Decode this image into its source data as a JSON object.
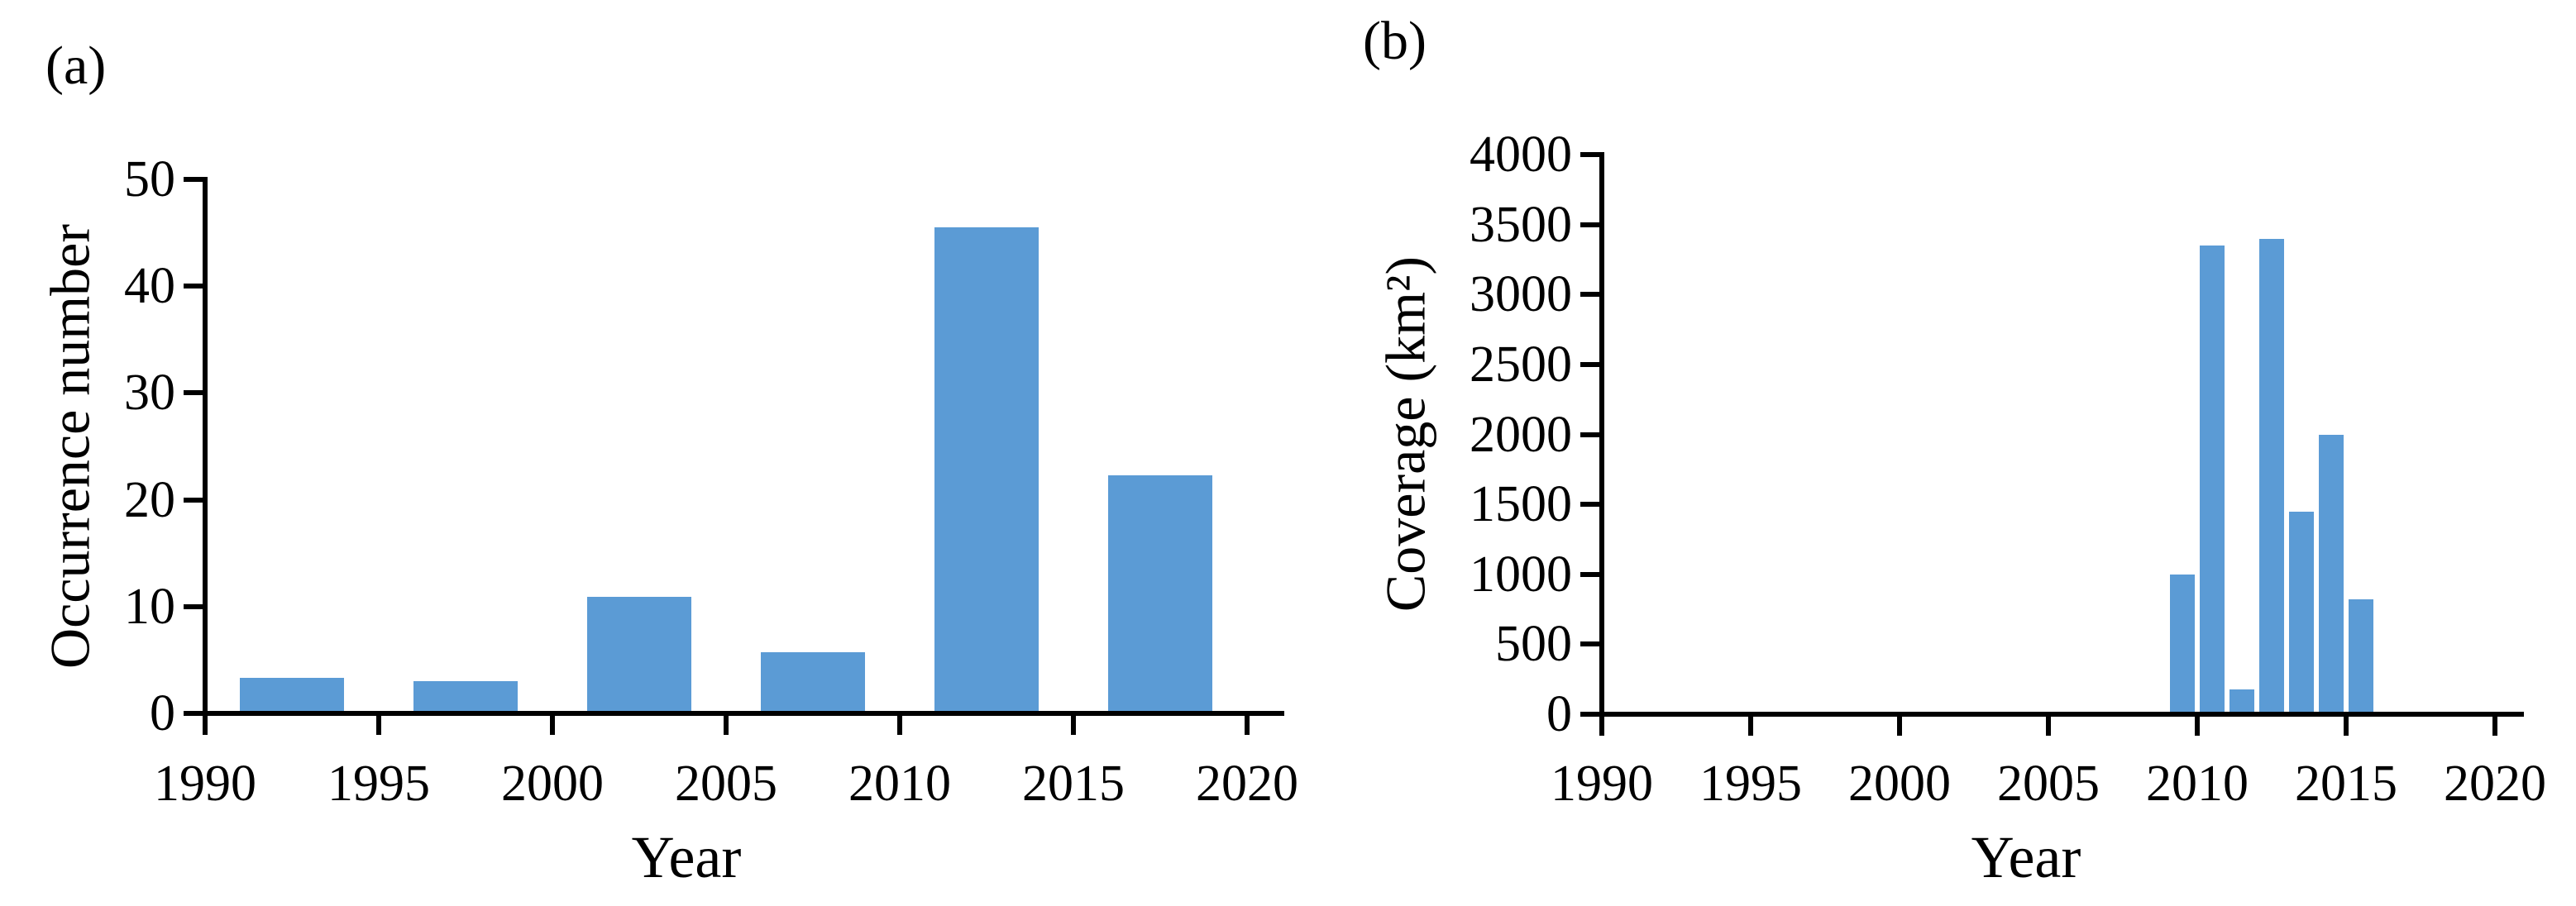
{
  "figure": {
    "background": "#ffffff",
    "text_color": "#000000",
    "panel_labels": [
      "(a)",
      "(b)"
    ]
  },
  "chart_data": [
    {
      "type": "bar",
      "panel_label": "(a)",
      "xlabel": "Year",
      "ylabel": "Occurrence number",
      "bins": [
        "1990–1995",
        "1995–2000",
        "2000–2005",
        "2005–2010",
        "2010–2015",
        "2015–2020"
      ],
      "bar_center_years": [
        1992.5,
        1997.5,
        2002.5,
        2007.5,
        2012.5,
        2017.5
      ],
      "bar_width_years": 3,
      "values": [
        3.3,
        3,
        10.9,
        5.7,
        45.5,
        22.3
      ],
      "xlim": [
        1990,
        2020
      ],
      "ylim": [
        0,
        50
      ],
      "x_tick_years": [
        1990,
        1995,
        2000,
        2005,
        2010,
        2015,
        2020
      ],
      "x_tick_labels": [
        "1990",
        "1995",
        "2000",
        "2005",
        "2010",
        "2015",
        "2020"
      ],
      "y_tick_values": [
        0,
        10,
        20,
        30,
        40,
        50
      ],
      "y_tick_labels": [
        "0",
        "10",
        "20",
        "30",
        "40",
        "50"
      ],
      "grid": false,
      "legend": false,
      "bar_color": "#5B9BD5",
      "axis_color": "#000000"
    },
    {
      "type": "bar",
      "panel_label": "(b)",
      "xlabel": "Year",
      "ylabel": "Coverage (km²)",
      "x": [
        2009,
        2010,
        2011,
        2012,
        2013,
        2014,
        2015
      ],
      "bar_center_years": [
        2009.5,
        2010.5,
        2011.5,
        2012.5,
        2013.5,
        2014.5,
        2015.5
      ],
      "bar_width_years": 0.83,
      "values": [
        1000,
        3350,
        175,
        3400,
        1450,
        2000,
        820
      ],
      "xlim": [
        1990,
        2020
      ],
      "ylim": [
        0,
        4000
      ],
      "x_tick_years": [
        1990,
        1995,
        2000,
        2005,
        2010,
        2015,
        2020
      ],
      "x_tick_labels": [
        "1990",
        "1995",
        "2000",
        "2005",
        "2010",
        "2015",
        "2020"
      ],
      "y_tick_values": [
        0,
        500,
        1000,
        1500,
        2000,
        2500,
        3000,
        3500,
        4000
      ],
      "y_tick_labels": [
        "0",
        "500",
        "1000",
        "1500",
        "2000",
        "2500",
        "3000",
        "3500",
        "4000"
      ],
      "grid": false,
      "legend": false,
      "bar_color": "#5B9BD5",
      "axis_color": "#000000"
    }
  ]
}
